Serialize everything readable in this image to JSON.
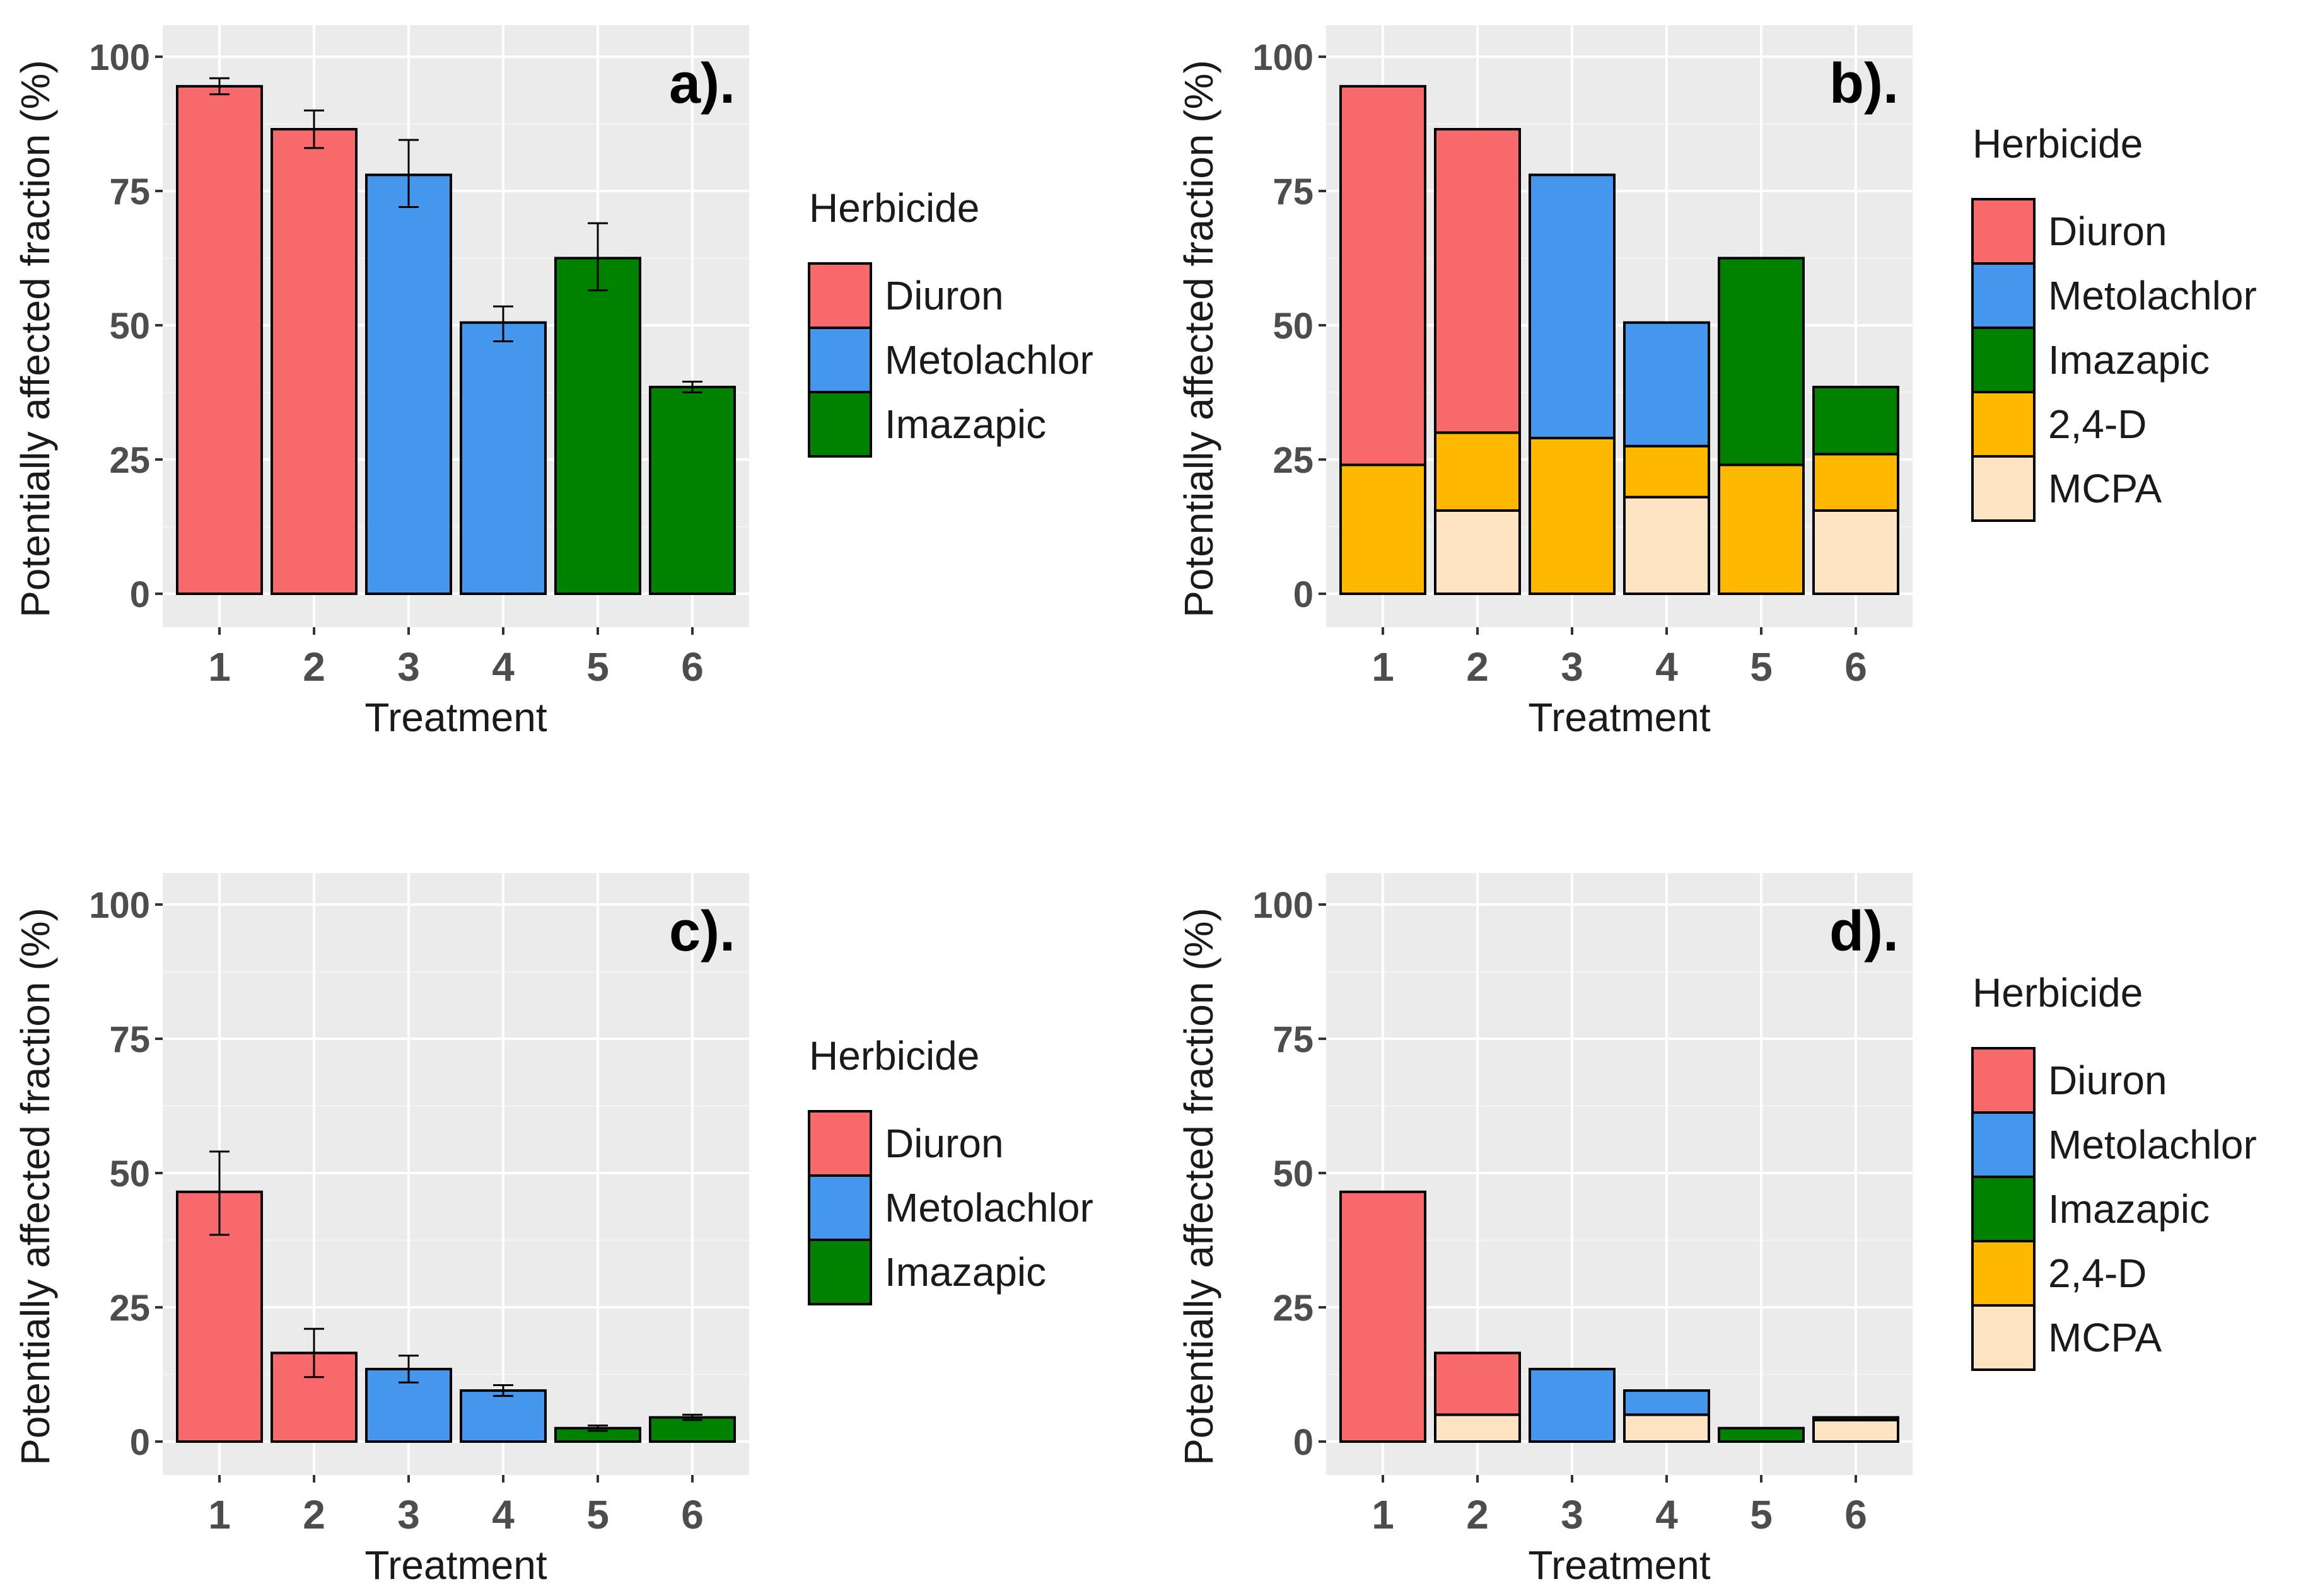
{
  "figure": {
    "herbicide_colors": {
      "Diuron": "#F8696B",
      "Metolachlor": "#4597EE",
      "Imazapic": "#008200",
      "2,4-D": "#FFB800",
      "MCPA": "#FFE4C4"
    }
  },
  "chart_data": [
    {
      "type": "bar",
      "panel_label": "a).",
      "xlabel": "Treatment",
      "ylabel": "Potentially affected fraction (%)",
      "ylim": [
        0,
        100
      ],
      "yticks": [
        "0",
        "25",
        "50",
        "75",
        "100"
      ],
      "categories": [
        "1",
        "2",
        "3",
        "4",
        "5",
        "6"
      ],
      "values": [
        94.5,
        86.5,
        78,
        50.5,
        62.5,
        38.5
      ],
      "error_low": [
        93,
        83,
        72,
        47,
        56.5,
        37.5
      ],
      "error_high": [
        96,
        90,
        84.5,
        53.5,
        69,
        39.5
      ],
      "fill_herbicide": [
        "Diuron",
        "Diuron",
        "Metolachlor",
        "Metolachlor",
        "Imazapic",
        "Imazapic"
      ],
      "legend": {
        "title": "Herbicide",
        "items": [
          "Diuron",
          "Metolachlor",
          "Imazapic"
        ]
      }
    },
    {
      "type": "stacked_bar",
      "panel_label": "b).",
      "xlabel": "Treatment",
      "ylabel": "Potentially affected fraction (%)",
      "ylim": [
        0,
        100
      ],
      "yticks": [
        "0",
        "25",
        "50",
        "75",
        "100"
      ],
      "categories": [
        "1",
        "2",
        "3",
        "4",
        "5",
        "6"
      ],
      "series": [
        {
          "name": "MCPA",
          "values": [
            0,
            15.5,
            0,
            18,
            0,
            15.5
          ]
        },
        {
          "name": "2,4-D",
          "values": [
            24,
            14.5,
            29,
            9.5,
            24,
            10.5
          ]
        },
        {
          "name": "Metolachlor",
          "values": [
            0,
            0,
            49,
            23,
            0,
            0
          ]
        },
        {
          "name": "Imazapic",
          "values": [
            0,
            0,
            0,
            0,
            38.5,
            12.5
          ]
        },
        {
          "name": "Diuron",
          "values": [
            70.5,
            56.5,
            0,
            0,
            0,
            0
          ]
        }
      ],
      "legend": {
        "title": "Herbicide",
        "items": [
          "Diuron",
          "Metolachlor",
          "Imazapic",
          "2,4-D",
          "MCPA"
        ]
      }
    },
    {
      "type": "bar",
      "panel_label": "c).",
      "xlabel": "Treatment",
      "ylabel": "Potentially affected fraction (%)",
      "ylim": [
        0,
        100
      ],
      "yticks": [
        "0",
        "25",
        "50",
        "75",
        "100"
      ],
      "categories": [
        "1",
        "2",
        "3",
        "4",
        "5",
        "6"
      ],
      "values": [
        46.5,
        16.5,
        13.5,
        9.5,
        2.5,
        4.5
      ],
      "error_low": [
        38.5,
        12,
        11,
        8.5,
        2,
        4
      ],
      "error_high": [
        54,
        21,
        16,
        10.5,
        3,
        5
      ],
      "fill_herbicide": [
        "Diuron",
        "Diuron",
        "Metolachlor",
        "Metolachlor",
        "Imazapic",
        "Imazapic"
      ],
      "legend": {
        "title": "Herbicide",
        "items": [
          "Diuron",
          "Metolachlor",
          "Imazapic"
        ]
      }
    },
    {
      "type": "stacked_bar",
      "panel_label": "d).",
      "xlabel": "Treatment",
      "ylabel": "Potentially affected fraction (%)",
      "ylim": [
        0,
        100
      ],
      "yticks": [
        "0",
        "25",
        "50",
        "75",
        "100"
      ],
      "categories": [
        "1",
        "2",
        "3",
        "4",
        "5",
        "6"
      ],
      "series": [
        {
          "name": "MCPA",
          "values": [
            0,
            5,
            0,
            5,
            0,
            4
          ]
        },
        {
          "name": "2,4-D",
          "values": [
            0,
            0,
            0,
            0,
            0,
            0
          ]
        },
        {
          "name": "Metolachlor",
          "values": [
            0,
            0,
            13.5,
            4.5,
            0,
            0
          ]
        },
        {
          "name": "Imazapic",
          "values": [
            0,
            0,
            0,
            0,
            2.5,
            0.5
          ]
        },
        {
          "name": "Diuron",
          "values": [
            46.5,
            11.5,
            0,
            0,
            0,
            0
          ]
        }
      ],
      "legend": {
        "title": "Herbicide",
        "items": [
          "Diuron",
          "Metolachlor",
          "Imazapic",
          "2,4-D",
          "MCPA"
        ]
      }
    }
  ]
}
